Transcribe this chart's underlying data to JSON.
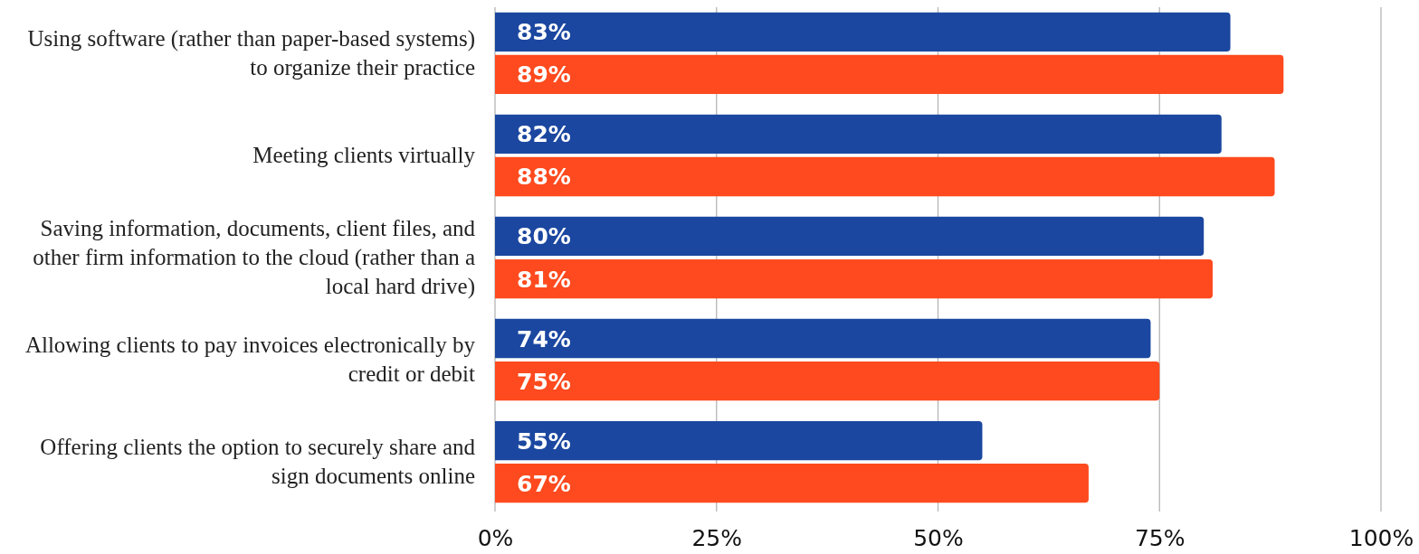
{
  "chart_data": {
    "type": "bar",
    "orientation": "horizontal",
    "categories": [
      "Using software (rather than paper-based systems) to organize their practice",
      "Meeting clients virtually",
      "Saving information, documents, client files, and other firm information to the cloud (rather than a local hard drive)",
      "Allowing clients to pay invoices electronically by credit or debit",
      "Offering clients the option to securely share and sign documents online"
    ],
    "series": [
      {
        "color": "#1b47a0",
        "values": [
          83,
          82,
          80,
          74,
          55
        ],
        "value_labels": [
          "83%",
          "82%",
          "80%",
          "74%",
          "55%"
        ]
      },
      {
        "color": "#fe4a1e",
        "values": [
          89,
          88,
          81,
          75,
          67
        ],
        "value_labels": [
          "89%",
          "88%",
          "81%",
          "75%",
          "67%"
        ]
      }
    ],
    "xlim": [
      0,
      100
    ],
    "xticks": [
      {
        "value": 0,
        "label": "0%"
      },
      {
        "value": 25,
        "label": "25%"
      },
      {
        "value": 50,
        "label": "50%"
      },
      {
        "value": 75,
        "label": "75%"
      },
      {
        "value": 100,
        "label": "100%"
      }
    ],
    "grid": "x"
  }
}
